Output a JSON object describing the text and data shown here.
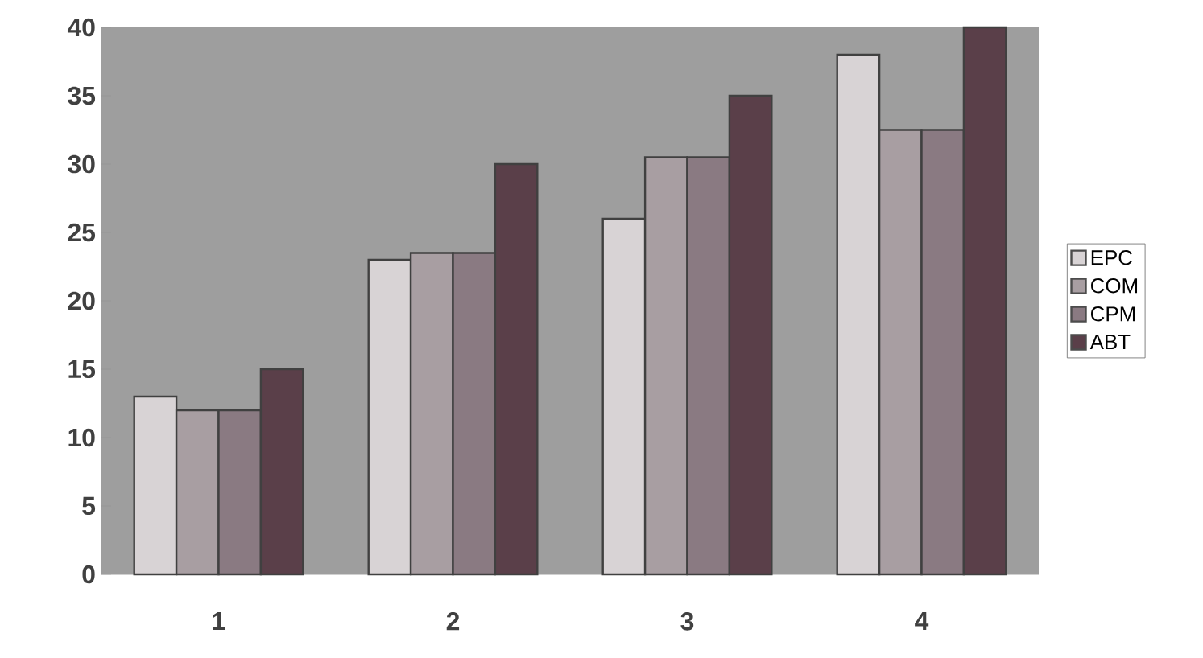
{
  "chart_data": {
    "type": "bar",
    "categories": [
      "1",
      "2",
      "3",
      "4"
    ],
    "series": [
      {
        "name": "EPC",
        "color": "#d8d3d5",
        "values": [
          13,
          23,
          26,
          38
        ]
      },
      {
        "name": "COM",
        "color": "#a89ea2",
        "values": [
          12,
          23.5,
          30.5,
          32.5
        ]
      },
      {
        "name": "CPM",
        "color": "#8a7a82",
        "values": [
          12,
          23.5,
          30.5,
          32.5
        ]
      },
      {
        "name": "ABT",
        "color": "#5a3f49",
        "values": [
          15,
          30,
          35,
          40
        ]
      }
    ],
    "ylim": [
      0,
      40
    ],
    "yticks": [
      0,
      5,
      10,
      15,
      20,
      25,
      30,
      35,
      40
    ],
    "grid": false,
    "legend": "right"
  }
}
